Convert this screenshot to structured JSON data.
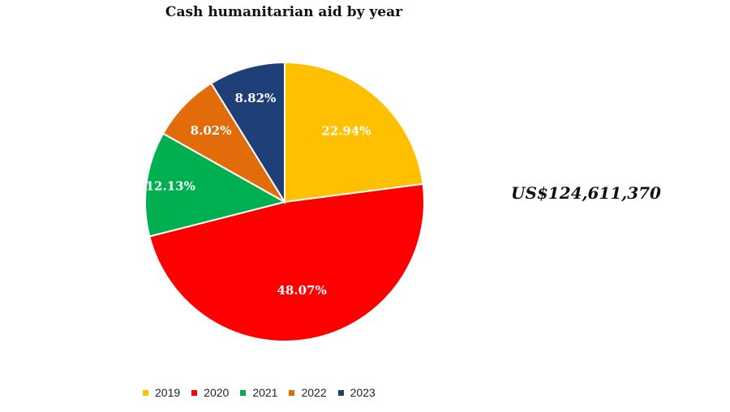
{
  "chart_data": {
    "type": "pie",
    "title": "Cash humanitarian aid by year",
    "categories": [
      "2019",
      "2020",
      "2021",
      "2022",
      "2023"
    ],
    "values": [
      22.94,
      48.07,
      12.13,
      8.02,
      8.82
    ],
    "data_labels": [
      "22.94%",
      "48.07%",
      "12.13%",
      "8.02%",
      "8.82%"
    ],
    "colors": [
      "#ffc000",
      "#ff0000",
      "#00b050",
      "#e36c0a",
      "#1f3f78"
    ],
    "start_angle": "12 o'clock",
    "direction": "clockwise",
    "legend_position": "bottom",
    "annotation": "US$124,611,370"
  }
}
